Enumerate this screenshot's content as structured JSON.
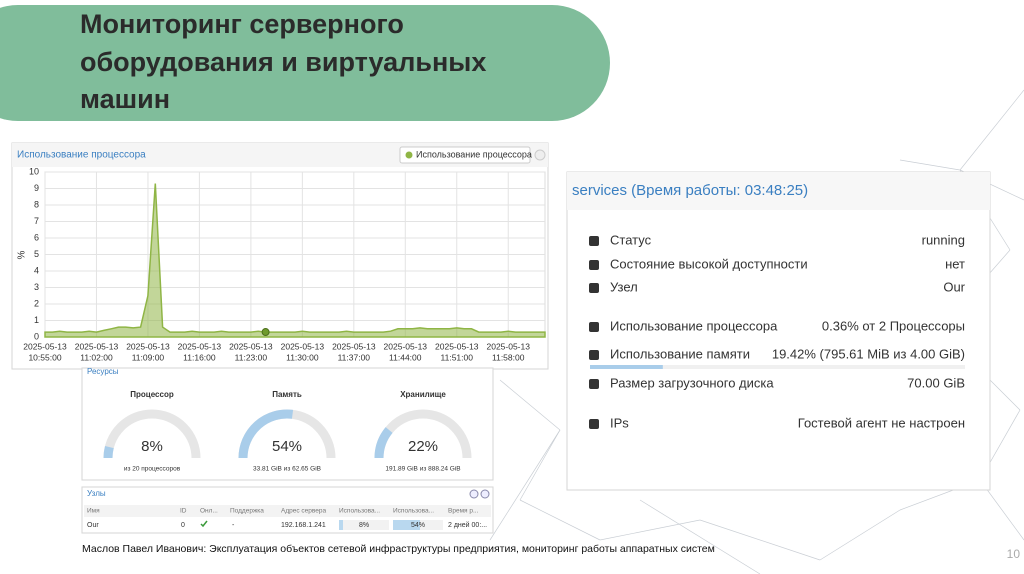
{
  "title": [
    "Мониторинг серверного",
    "оборудования и виртуальных",
    "машин"
  ],
  "cpu_chart": {
    "type": "area",
    "title": "Использование процессора",
    "legend": "Использование процессора",
    "y_label": "%",
    "color": "#8fb545",
    "ylim": [
      0,
      10
    ],
    "yticks": [
      0,
      1,
      2,
      3,
      4,
      5,
      6,
      7,
      8,
      9,
      10
    ],
    "grid": true,
    "xlim": [
      0,
      68
    ],
    "xticks": [
      {
        "value": 0,
        "label": [
          "2025-05-13",
          "10:55:00"
        ]
      },
      {
        "value": 7,
        "label": [
          "2025-05-13",
          "11:02:00"
        ]
      },
      {
        "value": 14,
        "label": [
          "2025-05-13",
          "11:09:00"
        ]
      },
      {
        "value": 21,
        "label": [
          "2025-05-13",
          "11:16:00"
        ]
      },
      {
        "value": 28,
        "label": [
          "2025-05-13",
          "11:23:00"
        ]
      },
      {
        "value": 35,
        "label": [
          "2025-05-13",
          "11:30:00"
        ]
      },
      {
        "value": 42,
        "label": [
          "2025-05-13",
          "11:37:00"
        ]
      },
      {
        "value": 49,
        "label": [
          "2025-05-13",
          "11:44:00"
        ]
      },
      {
        "value": 56,
        "label": [
          "2025-05-13",
          "11:51:00"
        ]
      },
      {
        "value": 63,
        "label": [
          "2025-05-13",
          "11:58:00"
        ]
      }
    ],
    "values": [
      0.3,
      0.3,
      0.35,
      0.3,
      0.3,
      0.3,
      0.35,
      0.3,
      0.4,
      0.5,
      0.6,
      0.6,
      0.55,
      0.6,
      2.5,
      9.3,
      0.6,
      0.3,
      0.3,
      0.3,
      0.35,
      0.3,
      0.3,
      0.3,
      0.35,
      0.3,
      0.3,
      0.3,
      0.3,
      0.35,
      0.3,
      0.3,
      0.3,
      0.3,
      0.3,
      0.35,
      0.3,
      0.3,
      0.3,
      0.3,
      0.3,
      0.35,
      0.3,
      0.3,
      0.3,
      0.3,
      0.3,
      0.35,
      0.5,
      0.5,
      0.5,
      0.55,
      0.5,
      0.5,
      0.5,
      0.5,
      0.55,
      0.5,
      0.5,
      0.3,
      0.3,
      0.3,
      0.3,
      0.35,
      0.3,
      0.3,
      0.3,
      0.3,
      0.3
    ]
  },
  "resources": {
    "title": "Ресурсы",
    "gauges": [
      {
        "name": "Процессор",
        "value": 8,
        "label": "8%",
        "detail": "из 20 процессоров"
      },
      {
        "name": "Память",
        "value": 54,
        "label": "54%",
        "detail": "33.81 GiB из 62.65 GiB"
      },
      {
        "name": "Хранилище",
        "value": 22,
        "label": "22%",
        "detail": "191.89 GiB из 888.24 GiB"
      }
    ]
  },
  "nodes": {
    "title": "Узлы",
    "columns": [
      "Имя",
      "ID",
      "Онл...",
      "Поддержка",
      "Адрес сервера",
      "Использова...",
      "Использова...",
      "Время р..."
    ],
    "row": {
      "name": "Our",
      "id": "0",
      "support": "-",
      "address": "192.168.1.241",
      "cpu": {
        "value": 8,
        "label": "8%"
      },
      "memory": {
        "value": 54,
        "label": "54%"
      },
      "uptime": "2 дней 00:..."
    }
  },
  "services": {
    "title": "services (Время работы: 03:48:25)",
    "memory_bar": 19.42,
    "rows": [
      {
        "label": "Статус",
        "value": "running"
      },
      {
        "label": "Состояние высокой доступности",
        "value": "нет"
      },
      {
        "label": "Узел",
        "value": "Our"
      },
      {
        "label": "Использование процессора",
        "value": "0.36% от 2 Процессоры"
      },
      {
        "label": "Использование памяти",
        "value": "19.42% (795.61 MiB из 4.00 GiB)"
      },
      {
        "label": "Размер загрузочного диска",
        "value": "70.00 GiB"
      },
      {
        "label": "IPs",
        "value": "Гостевой агент не настроен"
      }
    ]
  },
  "footer": "Маслов Павел Иванович: Эксплуатация объектов сетевой инфраструктуры предприятия, мониторинг работы аппаратных систем",
  "page_number": "10"
}
